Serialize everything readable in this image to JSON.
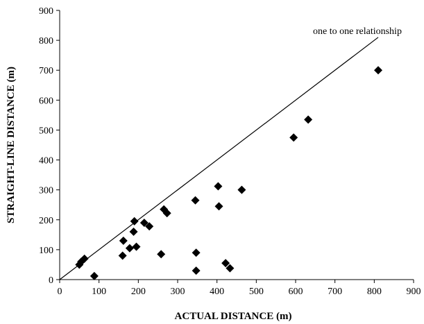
{
  "chart_data": {
    "type": "scatter",
    "xlabel": "ACTUAL DISTANCE (m)",
    "ylabel": "STRAIGHT-LINE DISTANCE (m)",
    "xlim": [
      0,
      900
    ],
    "ylim": [
      0,
      900
    ],
    "xticks": [
      0,
      100,
      200,
      300,
      400,
      500,
      600,
      700,
      800,
      900
    ],
    "yticks": [
      0,
      100,
      200,
      300,
      400,
      500,
      600,
      700,
      800,
      900
    ],
    "grid": false,
    "legend": "none",
    "marker": "diamond",
    "marker_color": "#000000",
    "reference_line": {
      "label": "one to one relationship",
      "from": [
        0,
        0
      ],
      "to": [
        810,
        810
      ]
    },
    "points": [
      {
        "x": 50,
        "y": 50
      },
      {
        "x": 55,
        "y": 60
      },
      {
        "x": 63,
        "y": 70
      },
      {
        "x": 88,
        "y": 12
      },
      {
        "x": 160,
        "y": 80
      },
      {
        "x": 162,
        "y": 130
      },
      {
        "x": 178,
        "y": 105
      },
      {
        "x": 188,
        "y": 160
      },
      {
        "x": 190,
        "y": 195
      },
      {
        "x": 195,
        "y": 110
      },
      {
        "x": 215,
        "y": 190
      },
      {
        "x": 228,
        "y": 178
      },
      {
        "x": 258,
        "y": 85
      },
      {
        "x": 265,
        "y": 235
      },
      {
        "x": 273,
        "y": 222
      },
      {
        "x": 345,
        "y": 265
      },
      {
        "x": 347,
        "y": 90
      },
      {
        "x": 347,
        "y": 30
      },
      {
        "x": 403,
        "y": 312
      },
      {
        "x": 405,
        "y": 245
      },
      {
        "x": 422,
        "y": 55
      },
      {
        "x": 433,
        "y": 38
      },
      {
        "x": 463,
        "y": 300
      },
      {
        "x": 595,
        "y": 475
      },
      {
        "x": 632,
        "y": 535
      },
      {
        "x": 810,
        "y": 700
      }
    ]
  }
}
